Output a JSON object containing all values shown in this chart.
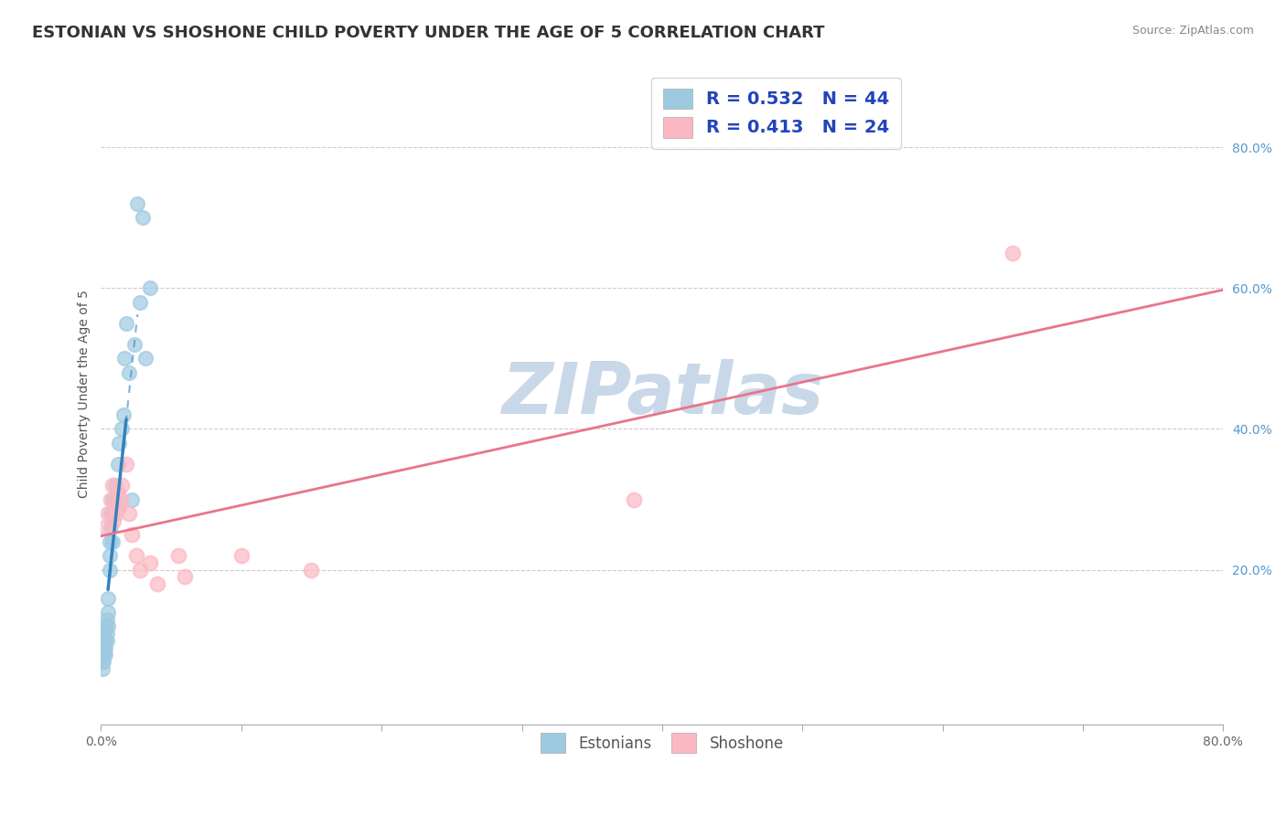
{
  "title": "ESTONIAN VS SHOSHONE CHILD POVERTY UNDER THE AGE OF 5 CORRELATION CHART",
  "source": "Source: ZipAtlas.com",
  "ylabel": "Child Poverty Under the Age of 5",
  "xlim": [
    0.0,
    0.8
  ],
  "ylim": [
    -0.02,
    0.92
  ],
  "legend_R_estonian": "0.532",
  "legend_N_estonian": "44",
  "legend_R_shoshone": "0.413",
  "legend_N_shoshone": "24",
  "estonian_color": "#9ecae1",
  "shoshone_color": "#fcb8c2",
  "regression_estonian_color": "#3182bd",
  "regression_shoshone_color": "#e8758a",
  "background_color": "#ffffff",
  "grid_color": "#cccccc",
  "watermark": "ZIPatlas",
  "watermark_color": "#c8d8e8",
  "est_x": [
    0.001,
    0.001,
    0.001,
    0.001,
    0.001,
    0.002,
    0.002,
    0.002,
    0.002,
    0.002,
    0.003,
    0.003,
    0.003,
    0.003,
    0.004,
    0.004,
    0.004,
    0.005,
    0.005,
    0.005,
    0.006,
    0.006,
    0.006,
    0.007,
    0.007,
    0.008,
    0.008,
    0.009,
    0.01,
    0.01,
    0.012,
    0.013,
    0.015,
    0.016,
    0.017,
    0.018,
    0.02,
    0.022,
    0.024,
    0.026,
    0.028,
    0.03,
    0.032,
    0.035
  ],
  "est_y": [
    0.06,
    0.07,
    0.08,
    0.09,
    0.1,
    0.07,
    0.08,
    0.09,
    0.1,
    0.11,
    0.08,
    0.09,
    0.1,
    0.12,
    0.1,
    0.11,
    0.13,
    0.12,
    0.14,
    0.16,
    0.2,
    0.22,
    0.24,
    0.26,
    0.28,
    0.24,
    0.3,
    0.28,
    0.3,
    0.32,
    0.35,
    0.38,
    0.4,
    0.42,
    0.5,
    0.55,
    0.48,
    0.3,
    0.52,
    0.72,
    0.58,
    0.7,
    0.5,
    0.6
  ],
  "sho_x": [
    0.003,
    0.005,
    0.007,
    0.008,
    0.009,
    0.01,
    0.011,
    0.012,
    0.013,
    0.014,
    0.015,
    0.018,
    0.02,
    0.022,
    0.025,
    0.028,
    0.035,
    0.04,
    0.055,
    0.06,
    0.1,
    0.15,
    0.38,
    0.65
  ],
  "sho_y": [
    0.26,
    0.28,
    0.3,
    0.32,
    0.27,
    0.29,
    0.28,
    0.31,
    0.29,
    0.3,
    0.32,
    0.35,
    0.28,
    0.25,
    0.22,
    0.2,
    0.21,
    0.18,
    0.22,
    0.19,
    0.22,
    0.2,
    0.3,
    0.65
  ],
  "title_fontsize": 13,
  "axis_label_fontsize": 10,
  "legend_fontsize": 13,
  "tick_fontsize": 10
}
